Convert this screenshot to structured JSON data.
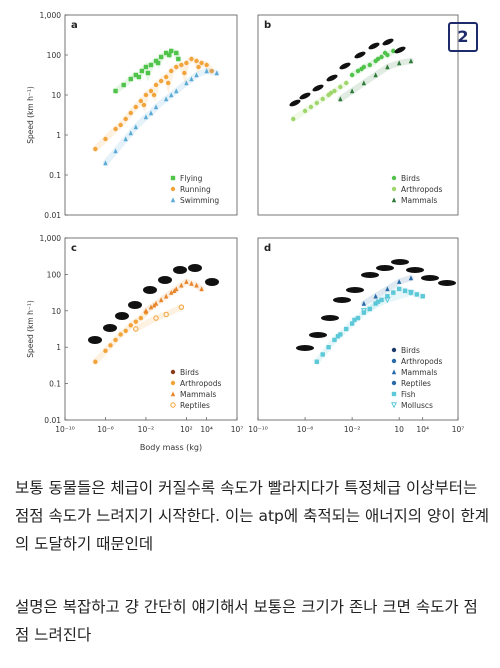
{
  "badge": "2",
  "chart_data": [
    {
      "panel": "a",
      "type": "scatter",
      "ylabel": "Speed (km h⁻¹)",
      "yticks": [
        "0.01",
        "0.1",
        "1",
        "10",
        "100",
        "1,000"
      ],
      "xticks": [],
      "xlim_log10": [
        -10,
        7
      ],
      "ylim_log10": [
        -2,
        3
      ],
      "scale": "log-log",
      "legend_position": "bottom-right",
      "series": [
        {
          "name": "Flying",
          "marker": "square",
          "color": "#4fc34a",
          "x": [
            -5,
            -4.2,
            -3.5,
            -3,
            -2.4,
            -2,
            -1.5,
            -1,
            -0.5,
            0,
            0.5,
            1,
            1.2,
            -1.8,
            -0.8,
            0.3,
            -2.7
          ],
          "y": [
            1.1,
            1.25,
            1.4,
            1.5,
            1.6,
            1.7,
            1.75,
            1.85,
            1.95,
            2.05,
            2.1,
            2.05,
            1.9,
            1.55,
            1.8,
            2.0,
            1.45
          ]
        },
        {
          "name": "Running",
          "marker": "circle",
          "color": "#f2a33a",
          "x": [
            -7,
            -6,
            -5,
            -4.5,
            -4,
            -3.5,
            -3,
            -2.5,
            -2,
            -1.5,
            -1,
            -0.5,
            0,
            0.5,
            1,
            1.5,
            2,
            2.5,
            3,
            3.5,
            4,
            4.5,
            -2.2,
            -1.2,
            0.2,
            1.8,
            3.2
          ],
          "y": [
            -0.35,
            -0.1,
            0.15,
            0.25,
            0.4,
            0.55,
            0.7,
            0.85,
            1.0,
            1.1,
            1.25,
            1.35,
            1.45,
            1.6,
            1.7,
            1.75,
            1.8,
            1.9,
            1.85,
            1.8,
            1.75,
            1.6,
            0.75,
            1.0,
            1.3,
            1.55,
            1.7
          ]
        },
        {
          "name": "Swimming",
          "marker": "triangle",
          "color": "#5aaad6",
          "x": [
            -6,
            -5,
            -4,
            -3,
            -2,
            -1,
            0,
            1,
            2,
            3,
            4,
            5,
            -3.5,
            -1.5,
            0.5,
            2.5
          ],
          "y": [
            -0.7,
            -0.4,
            -0.1,
            0.2,
            0.45,
            0.7,
            0.9,
            1.1,
            1.3,
            1.5,
            1.6,
            1.55,
            0.05,
            0.55,
            1.0,
            1.4
          ]
        }
      ]
    },
    {
      "panel": "b",
      "type": "scatter",
      "yticks": [],
      "xticks": [],
      "xlim_log10": [
        -10,
        7
      ],
      "ylim_log10": [
        -2,
        3
      ],
      "scale": "log-log",
      "legend_position": "bottom-right",
      "series": [
        {
          "name": "Birds",
          "marker": "circle",
          "color": "#4fc34a",
          "x": [
            -2,
            -1.5,
            -1,
            -0.5,
            0,
            0.5,
            1,
            1.5,
            -1.2,
            0.2,
            0.8
          ],
          "y": [
            1.5,
            1.6,
            1.7,
            1.75,
            1.85,
            1.95,
            2.0,
            2.1,
            1.65,
            1.9,
            2.05
          ]
        },
        {
          "name": "Arthropods",
          "marker": "circle",
          "color": "#9fd66b",
          "x": [
            -7,
            -6,
            -5,
            -4.5,
            -4,
            -3.5,
            -3,
            -2.5,
            -5.5,
            -3.8
          ],
          "y": [
            0.4,
            0.6,
            0.8,
            0.9,
            1.0,
            1.1,
            1.2,
            1.3,
            0.7,
            1.05
          ]
        },
        {
          "name": "Mammals",
          "marker": "triangle",
          "color": "#2f7a3a",
          "x": [
            -3,
            -2,
            -1,
            0,
            1,
            2,
            3
          ],
          "y": [
            0.9,
            1.1,
            1.3,
            1.5,
            1.7,
            1.8,
            1.85
          ]
        }
      ]
    },
    {
      "panel": "c",
      "type": "scatter",
      "ylabel": "Speed (km h⁻¹)",
      "yticks": [
        "0.01",
        "0.1",
        "1",
        "10",
        "100",
        "1,000"
      ],
      "xticks": [
        "10⁻¹⁰",
        "10⁻⁶",
        "10⁻²",
        "10²",
        "10⁴",
        "10⁷"
      ],
      "xlabel": "Body mass (kg)",
      "xlim_log10": [
        -10,
        7
      ],
      "ylim_log10": [
        -2,
        3
      ],
      "scale": "log-log",
      "legend_position": "bottom-right",
      "series": [
        {
          "name": "Birds",
          "marker": "circle",
          "color": "#8b3a1a",
          "x": [],
          "y": []
        },
        {
          "name": "Arthropods",
          "marker": "circle",
          "color": "#f2a33a",
          "x": [
            -7,
            -6,
            -5,
            -4,
            -3.5,
            -3,
            -2.5,
            -2,
            -4.5,
            -5.5
          ],
          "y": [
            -0.4,
            -0.1,
            0.2,
            0.45,
            0.6,
            0.7,
            0.8,
            0.95,
            0.35,
            0.05
          ]
        },
        {
          "name": "Mammals",
          "marker": "triangle",
          "color": "#e8852a",
          "x": [
            -2,
            -1.5,
            -1,
            -0.5,
            0,
            0.5,
            1,
            1.5,
            2,
            2.5,
            3,
            3.5,
            -1.2,
            0.8
          ],
          "y": [
            1.0,
            1.1,
            1.2,
            1.3,
            1.4,
            1.5,
            1.6,
            1.7,
            1.8,
            1.75,
            1.7,
            1.6,
            1.15,
            1.55
          ]
        },
        {
          "name": "Reptiles",
          "marker": "open-circle",
          "color": "#f2a33a",
          "x": [
            -3,
            -1,
            0,
            1.5
          ],
          "y": [
            0.5,
            0.8,
            0.9,
            1.1
          ]
        }
      ]
    },
    {
      "panel": "d",
      "type": "scatter",
      "yticks": [],
      "xticks": [
        "10⁻¹⁰",
        "10⁻⁶",
        "10⁻²",
        "10",
        "10⁴",
        "10⁷"
      ],
      "xlim_log10": [
        -10,
        7
      ],
      "ylim_log10": [
        -2,
        3
      ],
      "scale": "log-log",
      "legend_position": "bottom-right",
      "series": [
        {
          "name": "Birds",
          "marker": "circle",
          "color": "#1a3a6b",
          "x": [],
          "y": []
        },
        {
          "name": "Arthropods",
          "marker": "circle",
          "color": "#2a6aa8",
          "x": [],
          "y": []
        },
        {
          "name": "Mammals",
          "marker": "triangle",
          "color": "#2a6aa8",
          "x": [
            -1,
            0,
            1,
            2,
            3
          ],
          "y": [
            1.2,
            1.4,
            1.6,
            1.8,
            1.9
          ]
        },
        {
          "name": "Reptiles",
          "marker": "circle",
          "color": "#2a6aa8",
          "x": [],
          "y": []
        },
        {
          "name": "Fish",
          "marker": "square",
          "color": "#5cc8d8",
          "x": [
            -5,
            -4.5,
            -4,
            -3.5,
            -3,
            -2.5,
            -2,
            -1.5,
            -1,
            -0.5,
            0,
            0.5,
            1,
            1.5,
            2,
            2.5,
            3,
            3.5,
            4,
            -3.2,
            -1.8,
            0.2
          ],
          "y": [
            -0.4,
            -0.2,
            0.0,
            0.2,
            0.35,
            0.5,
            0.65,
            0.8,
            0.95,
            1.05,
            1.2,
            1.3,
            1.4,
            1.5,
            1.6,
            1.55,
            1.5,
            1.45,
            1.4,
            0.3,
            0.75,
            1.25
          ]
        },
        {
          "name": "Molluscs",
          "marker": "open-triangle-down",
          "color": "#5cc8d8",
          "x": [
            -1,
            1,
            3
          ],
          "y": [
            1.0,
            1.3,
            1.5
          ]
        }
      ]
    }
  ],
  "text": {
    "p1": "보통 동물들은 체급이 커질수록 속도가 빨라지다가 특정체급 이상부터는 점점 속도가 느려지기 시작한다. 이는 atp에 축적되는 애너지의 양이 한계의 도달하기 때문인데",
    "p2": "설명은 복잡하고 걍 간단히 얘기해서 보통은 크기가 존나 크면 속도가 점점 느려진다"
  }
}
